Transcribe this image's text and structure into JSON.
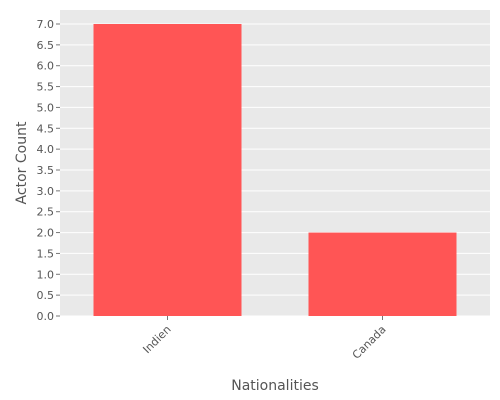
{
  "chart_data": {
    "type": "bar",
    "categories": [
      "Indien",
      "Canada"
    ],
    "values": [
      7,
      2
    ],
    "xlabel": "Nationalities",
    "ylabel": "Actor Count",
    "ylim": [
      0,
      7.0
    ],
    "yticks": [
      "0.0",
      "0.5",
      "1.0",
      "1.5",
      "2.0",
      "2.5",
      "3.0",
      "3.5",
      "4.0",
      "4.5",
      "5.0",
      "5.5",
      "6.0",
      "6.5",
      "7.0"
    ],
    "grid": true,
    "legend": "none",
    "colors": {
      "bar": "#ff5555",
      "plot_background": "#e9e9e9",
      "grid": "#ffffff",
      "text": "#555555"
    }
  }
}
